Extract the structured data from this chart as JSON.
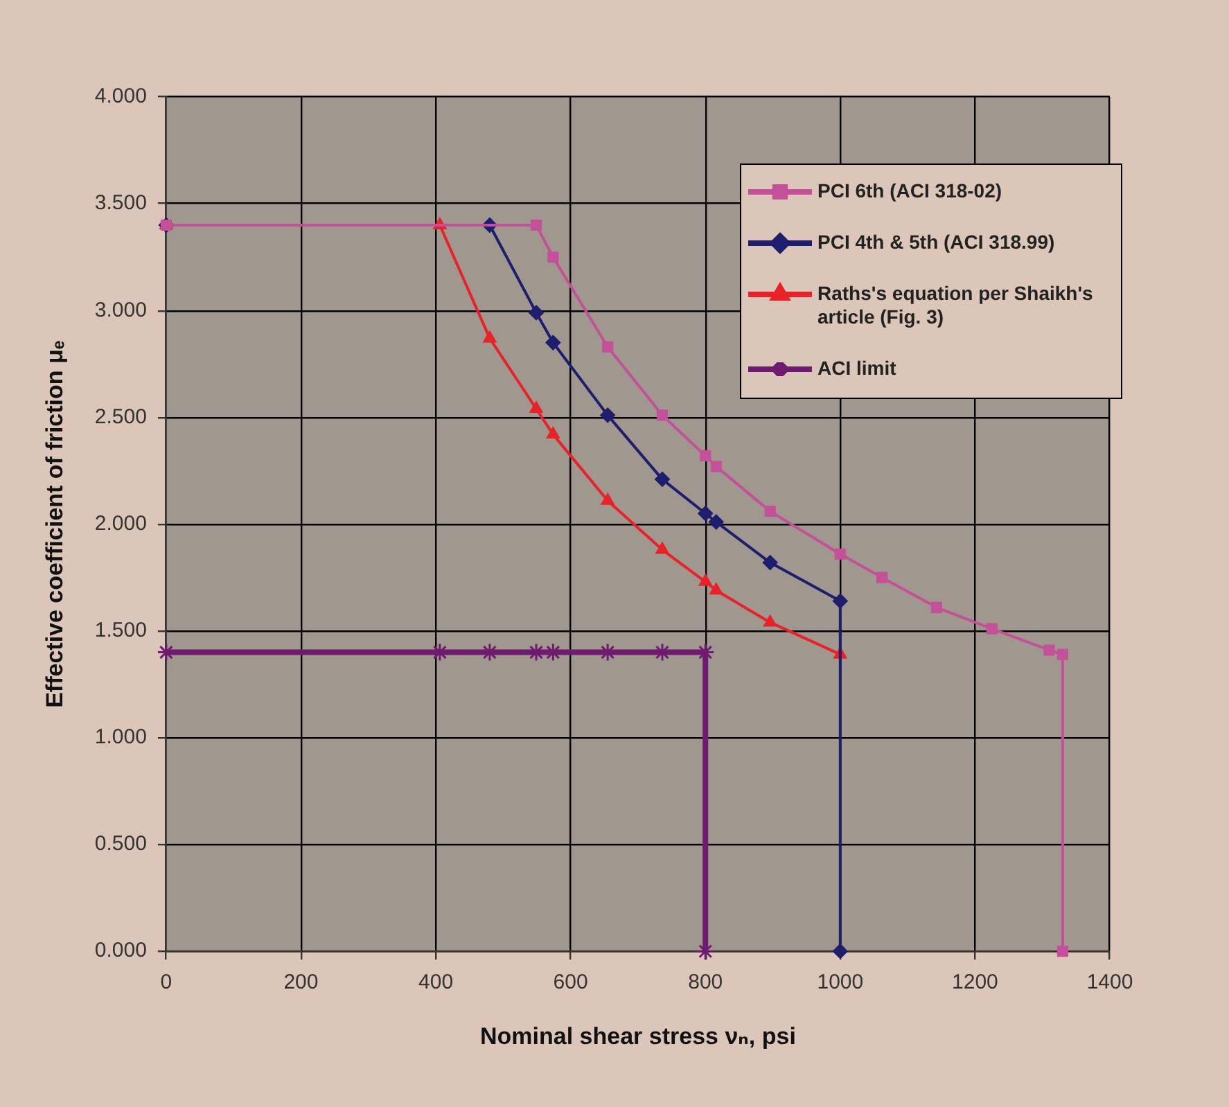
{
  "chart_data": {
    "type": "line",
    "xlabel": "Nominal shear stress νₙ, psi",
    "ylabel": "Effective coefficient of friction μₑ",
    "xlim": [
      0,
      1400
    ],
    "xticks": [
      0,
      200,
      400,
      600,
      800,
      1000,
      1200,
      1400
    ],
    "ylim": [
      0,
      4
    ],
    "yticks": [
      {
        "value": 0,
        "label": "0.000"
      },
      {
        "value": 0.5,
        "label": "0.500"
      },
      {
        "value": 1,
        "label": "1.000"
      },
      {
        "value": 1.5,
        "label": "1.500"
      },
      {
        "value": 2,
        "label": "2.000"
      },
      {
        "value": 2.5,
        "label": "2.500"
      },
      {
        "value": 3,
        "label": "3.000"
      },
      {
        "value": 3.5,
        "label": "3.500"
      },
      {
        "value": 4,
        "label": "4.000"
      }
    ],
    "grid": true,
    "legend": "top right",
    "line_style": "solid",
    "series": [
      {
        "name": "PCI 6th (ACI 318-02)",
        "color": "#c4509a",
        "marker": "square",
        "x": [
          0,
          549,
          574,
          655,
          736,
          800,
          816,
          896,
          1000,
          1062,
          1143,
          1225,
          1310,
          1330,
          1330
        ],
        "values": [
          3.4,
          3.4,
          3.25,
          2.83,
          2.51,
          2.32,
          2.27,
          2.06,
          1.86,
          1.75,
          1.61,
          1.51,
          1.41,
          1.39,
          0
        ]
      },
      {
        "name": "PCI 4th & 5th (ACI 318.99)",
        "color": "#1e1e6e",
        "marker": "diamond",
        "x": [
          0,
          480,
          549,
          574,
          655,
          736,
          800,
          816,
          896,
          1000,
          1000
        ],
        "values": [
          3.4,
          3.4,
          2.99,
          2.85,
          2.51,
          2.21,
          2.05,
          2.01,
          1.82,
          1.64,
          0
        ]
      },
      {
        "name": "Raths's equation per Shaikh's article (Fig. 3)",
        "color": "#e82228",
        "marker": "triangle",
        "x": [
          0,
          406,
          480,
          549,
          574,
          655,
          736,
          800,
          816,
          896,
          1000
        ],
        "values": [
          3.4,
          3.4,
          2.87,
          2.54,
          2.42,
          2.11,
          1.88,
          1.73,
          1.69,
          1.54,
          1.39
        ]
      },
      {
        "name": "ACI limit",
        "color": "#6e1a6e",
        "marker": "cross",
        "x": [
          0,
          406,
          480,
          549,
          574,
          655,
          736,
          800,
          800
        ],
        "values": [
          1.4,
          1.4,
          1.4,
          1.4,
          1.4,
          1.4,
          1.4,
          1.4,
          0
        ]
      }
    ]
  }
}
